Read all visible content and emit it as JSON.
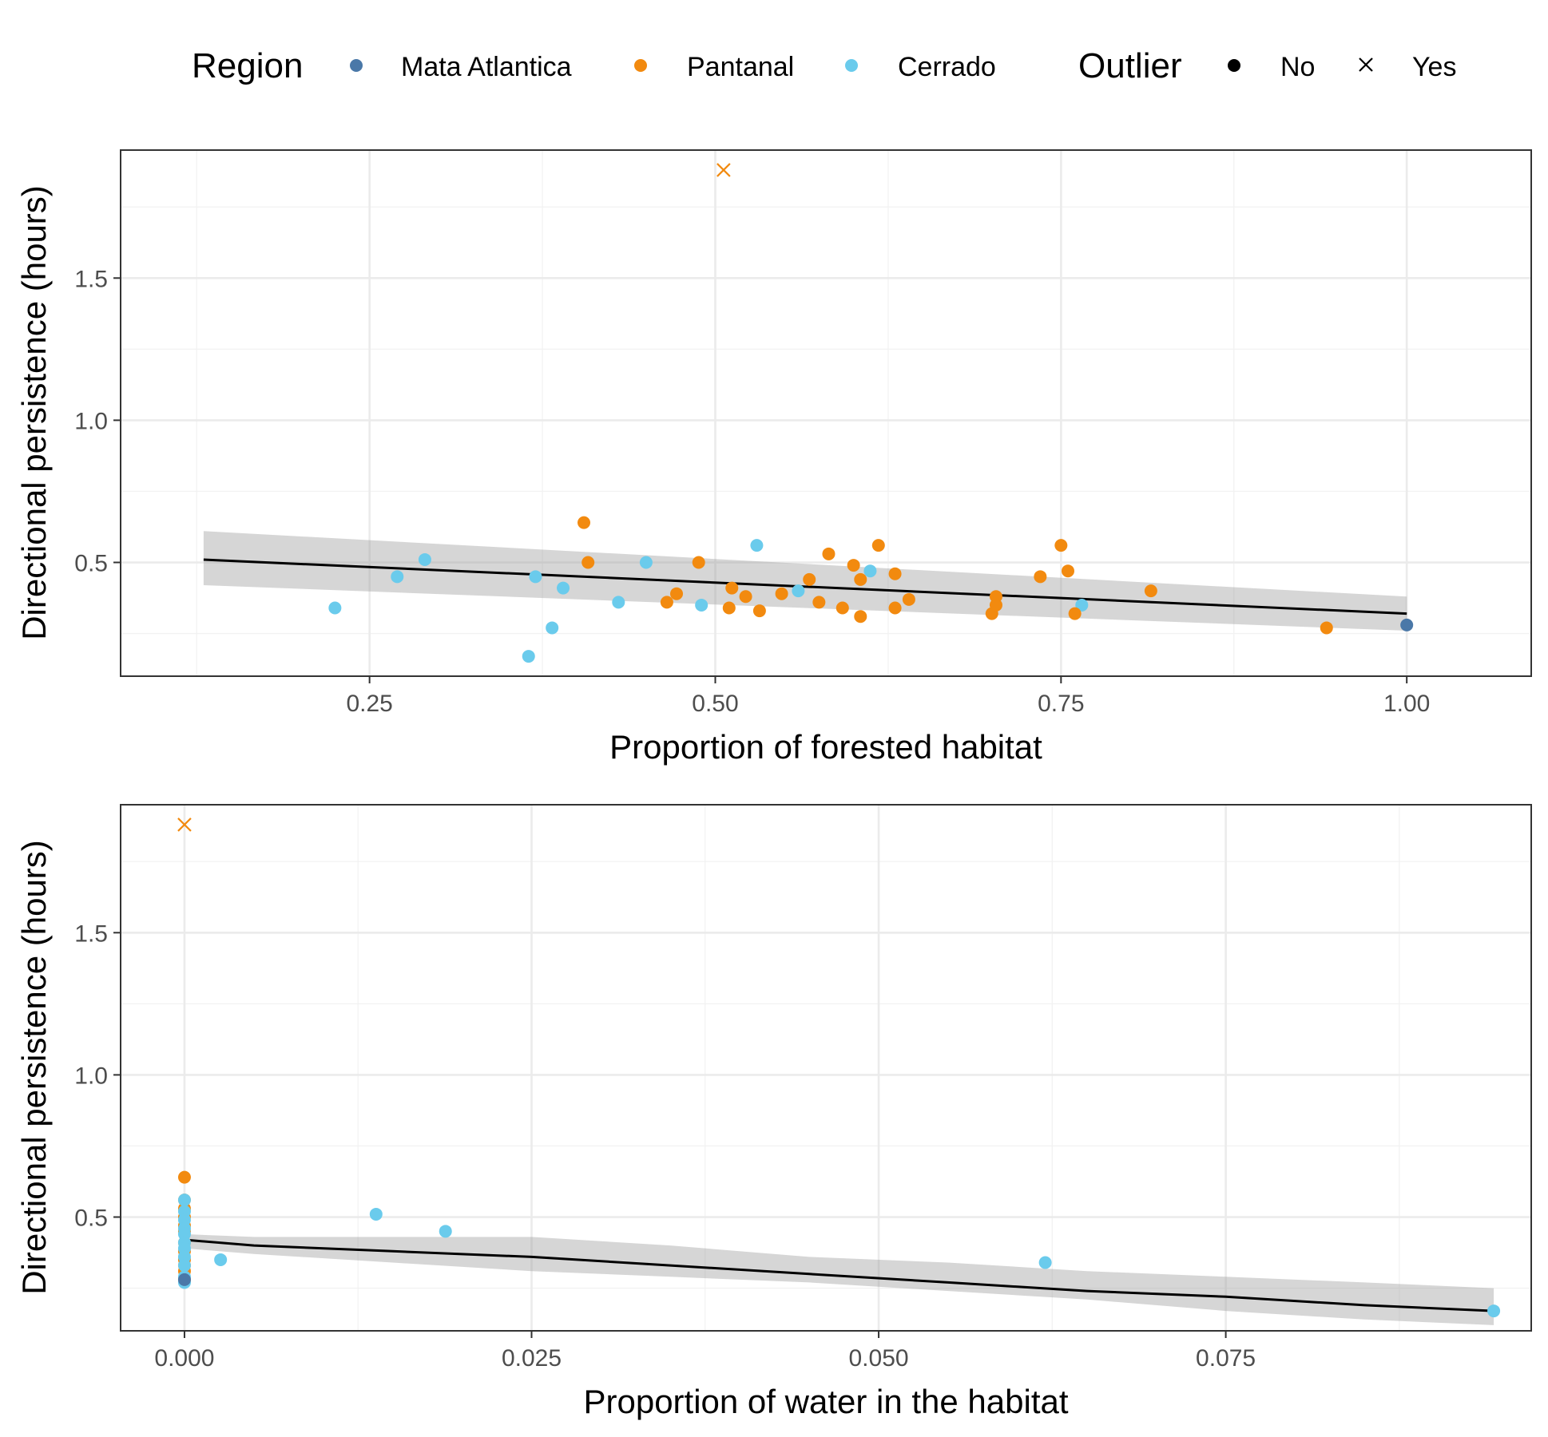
{
  "legend": {
    "region_title": "Region",
    "outlier_title": "Outlier",
    "regions": [
      {
        "label": "Mata Atlantica",
        "color": "#4a78a8"
      },
      {
        "label": "Pantanal",
        "color": "#f28a0f"
      },
      {
        "label": "Cerrado",
        "color": "#6acbec"
      }
    ],
    "outlier": [
      {
        "label": "No",
        "shape": "dot"
      },
      {
        "label": "Yes",
        "shape": "cross"
      }
    ]
  },
  "chart_data": [
    {
      "type": "scatter",
      "xlabel": "Proportion of forested habitat",
      "ylabel": "Directional persistence (hours)",
      "xlim": [
        0.07,
        1.09
      ],
      "ylim": [
        0.1,
        1.95
      ],
      "xticks": [
        0.25,
        0.5,
        0.75,
        1.0
      ],
      "xtick_labels": [
        "0.25",
        "0.50",
        "0.75",
        "1.00"
      ],
      "yticks": [
        0.5,
        1.0,
        1.5
      ],
      "ytick_labels": [
        "0.5",
        "1.0",
        "1.5"
      ],
      "grid": true,
      "fit": {
        "x": [
          0.13,
          1.0
        ],
        "y": [
          0.51,
          0.32
        ],
        "band_upper": [
          0.61,
          0.38
        ],
        "band_lower": [
          0.42,
          0.26
        ]
      },
      "points": [
        {
          "x": 1.0,
          "y": 0.28,
          "region": "Mata Atlantica",
          "outlier": "No"
        },
        {
          "x": 0.225,
          "y": 0.34,
          "region": "Cerrado",
          "outlier": "No"
        },
        {
          "x": 0.27,
          "y": 0.45,
          "region": "Cerrado",
          "outlier": "No"
        },
        {
          "x": 0.29,
          "y": 0.51,
          "region": "Cerrado",
          "outlier": "No"
        },
        {
          "x": 0.365,
          "y": 0.17,
          "region": "Cerrado",
          "outlier": "No"
        },
        {
          "x": 0.37,
          "y": 0.45,
          "region": "Cerrado",
          "outlier": "No"
        },
        {
          "x": 0.382,
          "y": 0.27,
          "region": "Cerrado",
          "outlier": "No"
        },
        {
          "x": 0.39,
          "y": 0.41,
          "region": "Cerrado",
          "outlier": "No"
        },
        {
          "x": 0.43,
          "y": 0.36,
          "region": "Cerrado",
          "outlier": "No"
        },
        {
          "x": 0.45,
          "y": 0.5,
          "region": "Cerrado",
          "outlier": "No"
        },
        {
          "x": 0.49,
          "y": 0.35,
          "region": "Cerrado",
          "outlier": "No"
        },
        {
          "x": 0.53,
          "y": 0.56,
          "region": "Cerrado",
          "outlier": "No"
        },
        {
          "x": 0.56,
          "y": 0.4,
          "region": "Cerrado",
          "outlier": "No"
        },
        {
          "x": 0.612,
          "y": 0.47,
          "region": "Cerrado",
          "outlier": "No"
        },
        {
          "x": 0.765,
          "y": 0.35,
          "region": "Cerrado",
          "outlier": "No"
        },
        {
          "x": 0.405,
          "y": 0.64,
          "region": "Pantanal",
          "outlier": "No"
        },
        {
          "x": 0.408,
          "y": 0.5,
          "region": "Pantanal",
          "outlier": "No"
        },
        {
          "x": 0.465,
          "y": 0.36,
          "region": "Pantanal",
          "outlier": "No"
        },
        {
          "x": 0.472,
          "y": 0.39,
          "region": "Pantanal",
          "outlier": "No"
        },
        {
          "x": 0.488,
          "y": 0.5,
          "region": "Pantanal",
          "outlier": "No"
        },
        {
          "x": 0.51,
          "y": 0.34,
          "region": "Pantanal",
          "outlier": "No"
        },
        {
          "x": 0.512,
          "y": 0.41,
          "region": "Pantanal",
          "outlier": "No"
        },
        {
          "x": 0.522,
          "y": 0.38,
          "region": "Pantanal",
          "outlier": "No"
        },
        {
          "x": 0.532,
          "y": 0.33,
          "region": "Pantanal",
          "outlier": "No"
        },
        {
          "x": 0.548,
          "y": 0.39,
          "region": "Pantanal",
          "outlier": "No"
        },
        {
          "x": 0.568,
          "y": 0.44,
          "region": "Pantanal",
          "outlier": "No"
        },
        {
          "x": 0.575,
          "y": 0.36,
          "region": "Pantanal",
          "outlier": "No"
        },
        {
          "x": 0.582,
          "y": 0.53,
          "region": "Pantanal",
          "outlier": "No"
        },
        {
          "x": 0.592,
          "y": 0.34,
          "region": "Pantanal",
          "outlier": "No"
        },
        {
          "x": 0.6,
          "y": 0.49,
          "region": "Pantanal",
          "outlier": "No"
        },
        {
          "x": 0.605,
          "y": 0.44,
          "region": "Pantanal",
          "outlier": "No"
        },
        {
          "x": 0.605,
          "y": 0.31,
          "region": "Pantanal",
          "outlier": "No"
        },
        {
          "x": 0.618,
          "y": 0.56,
          "region": "Pantanal",
          "outlier": "No"
        },
        {
          "x": 0.63,
          "y": 0.46,
          "region": "Pantanal",
          "outlier": "No"
        },
        {
          "x": 0.63,
          "y": 0.34,
          "region": "Pantanal",
          "outlier": "No"
        },
        {
          "x": 0.64,
          "y": 0.37,
          "region": "Pantanal",
          "outlier": "No"
        },
        {
          "x": 0.7,
          "y": 0.32,
          "region": "Pantanal",
          "outlier": "No"
        },
        {
          "x": 0.703,
          "y": 0.38,
          "region": "Pantanal",
          "outlier": "No"
        },
        {
          "x": 0.703,
          "y": 0.35,
          "region": "Pantanal",
          "outlier": "No"
        },
        {
          "x": 0.735,
          "y": 0.45,
          "region": "Pantanal",
          "outlier": "No"
        },
        {
          "x": 0.75,
          "y": 0.56,
          "region": "Pantanal",
          "outlier": "No"
        },
        {
          "x": 0.755,
          "y": 0.47,
          "region": "Pantanal",
          "outlier": "No"
        },
        {
          "x": 0.76,
          "y": 0.32,
          "region": "Pantanal",
          "outlier": "No"
        },
        {
          "x": 0.815,
          "y": 0.4,
          "region": "Pantanal",
          "outlier": "No"
        },
        {
          "x": 0.942,
          "y": 0.27,
          "region": "Pantanal",
          "outlier": "No"
        },
        {
          "x": 0.506,
          "y": 1.88,
          "region": "Pantanal",
          "outlier": "Yes"
        }
      ]
    },
    {
      "type": "scatter",
      "xlabel": "Proportion of water in the habitat",
      "ylabel": "Directional persistence (hours)",
      "xlim": [
        -0.0046,
        0.097
      ],
      "ylim": [
        0.1,
        1.95
      ],
      "xticks": [
        0.0,
        0.025,
        0.05,
        0.075
      ],
      "xtick_labels": [
        "0.000",
        "0.025",
        "0.050",
        "0.075"
      ],
      "yticks": [
        0.5,
        1.0,
        1.5
      ],
      "ytick_labels": [
        "0.5",
        "1.0",
        "1.5"
      ],
      "grid": true,
      "fit": {
        "x": [
          0.0,
          0.005,
          0.015,
          0.025,
          0.035,
          0.045,
          0.055,
          0.065,
          0.075,
          0.085,
          0.0943
        ],
        "y": [
          0.42,
          0.4,
          0.38,
          0.36,
          0.33,
          0.3,
          0.27,
          0.24,
          0.22,
          0.19,
          0.17
        ],
        "band_upper": [
          0.44,
          0.43,
          0.43,
          0.43,
          0.4,
          0.36,
          0.34,
          0.31,
          0.29,
          0.27,
          0.25
        ],
        "band_lower": [
          0.39,
          0.37,
          0.34,
          0.31,
          0.29,
          0.27,
          0.24,
          0.21,
          0.17,
          0.14,
          0.12
        ]
      },
      "points": [
        {
          "x": 0.0,
          "y": 0.64,
          "region": "Pantanal",
          "outlier": "No"
        },
        {
          "x": 0.0,
          "y": 0.56,
          "region": "Pantanal",
          "outlier": "No"
        },
        {
          "x": 0.0,
          "y": 0.53,
          "region": "Pantanal",
          "outlier": "No"
        },
        {
          "x": 0.0,
          "y": 0.5,
          "region": "Pantanal",
          "outlier": "No"
        },
        {
          "x": 0.0,
          "y": 0.47,
          "region": "Pantanal",
          "outlier": "No"
        },
        {
          "x": 0.0,
          "y": 0.45,
          "region": "Pantanal",
          "outlier": "No"
        },
        {
          "x": 0.0,
          "y": 0.41,
          "region": "Pantanal",
          "outlier": "No"
        },
        {
          "x": 0.0,
          "y": 0.38,
          "region": "Pantanal",
          "outlier": "No"
        },
        {
          "x": 0.0,
          "y": 0.35,
          "region": "Pantanal",
          "outlier": "No"
        },
        {
          "x": 0.0,
          "y": 0.33,
          "region": "Pantanal",
          "outlier": "No"
        },
        {
          "x": 0.0,
          "y": 0.31,
          "region": "Pantanal",
          "outlier": "No"
        },
        {
          "x": 0.0,
          "y": 0.28,
          "region": "Pantanal",
          "outlier": "No"
        },
        {
          "x": 0.0,
          "y": 0.56,
          "region": "Cerrado",
          "outlier": "No"
        },
        {
          "x": 0.0,
          "y": 0.52,
          "region": "Cerrado",
          "outlier": "No"
        },
        {
          "x": 0.0,
          "y": 0.49,
          "region": "Cerrado",
          "outlier": "No"
        },
        {
          "x": 0.0,
          "y": 0.46,
          "region": "Cerrado",
          "outlier": "No"
        },
        {
          "x": 0.0,
          "y": 0.44,
          "region": "Cerrado",
          "outlier": "No"
        },
        {
          "x": 0.0,
          "y": 0.41,
          "region": "Cerrado",
          "outlier": "No"
        },
        {
          "x": 0.0,
          "y": 0.39,
          "region": "Cerrado",
          "outlier": "No"
        },
        {
          "x": 0.0,
          "y": 0.36,
          "region": "Cerrado",
          "outlier": "No"
        },
        {
          "x": 0.0,
          "y": 0.33,
          "region": "Cerrado",
          "outlier": "No"
        },
        {
          "x": 0.0,
          "y": 0.29,
          "region": "Cerrado",
          "outlier": "No"
        },
        {
          "x": 0.0,
          "y": 0.27,
          "region": "Cerrado",
          "outlier": "No"
        },
        {
          "x": 0.0,
          "y": 0.28,
          "region": "Mata Atlantica",
          "outlier": "No"
        },
        {
          "x": 0.0026,
          "y": 0.35,
          "region": "Cerrado",
          "outlier": "No"
        },
        {
          "x": 0.0138,
          "y": 0.51,
          "region": "Cerrado",
          "outlier": "No"
        },
        {
          "x": 0.0188,
          "y": 0.45,
          "region": "Cerrado",
          "outlier": "No"
        },
        {
          "x": 0.062,
          "y": 0.34,
          "region": "Cerrado",
          "outlier": "No"
        },
        {
          "x": 0.0943,
          "y": 0.17,
          "region": "Cerrado",
          "outlier": "No"
        },
        {
          "x": 0.0,
          "y": 1.88,
          "region": "Pantanal",
          "outlier": "Yes"
        }
      ]
    }
  ]
}
